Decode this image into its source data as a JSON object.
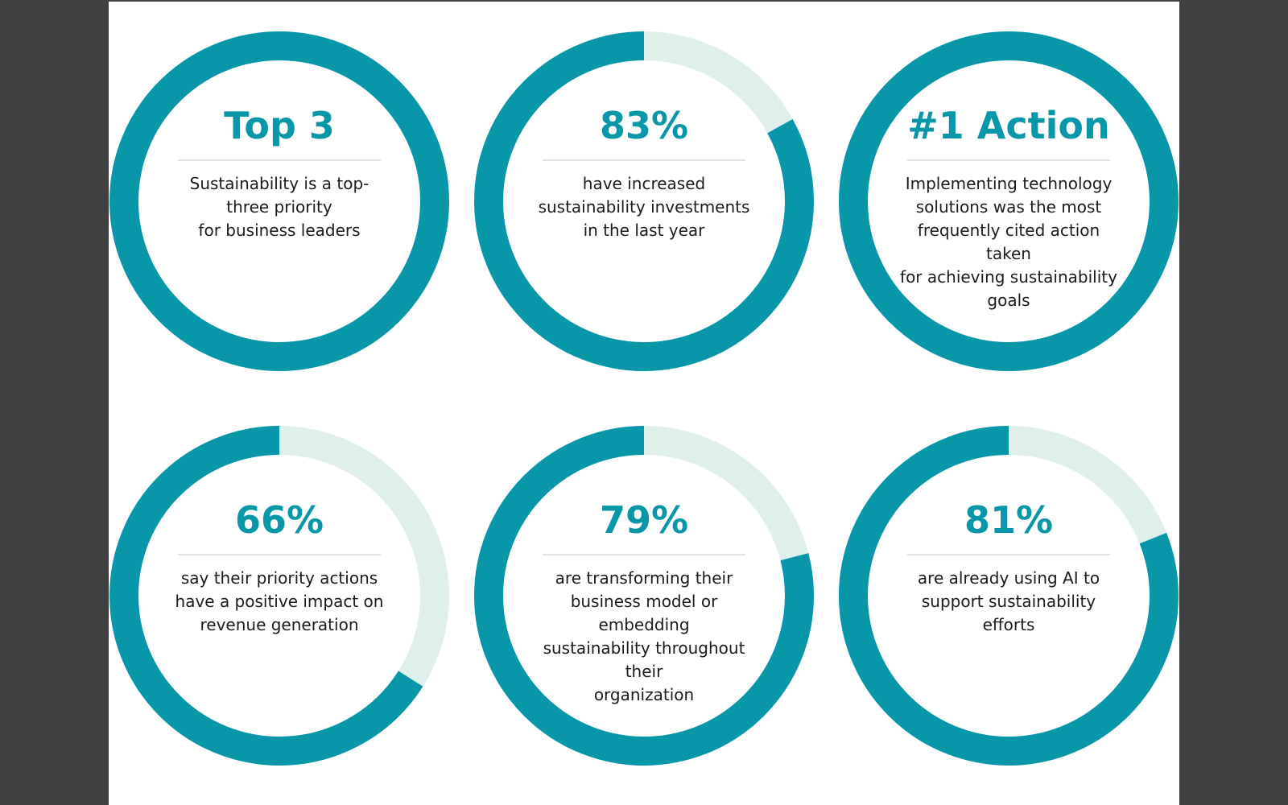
{
  "colors": {
    "ring_filled": "#0897a8",
    "ring_remaining": "#dff0ec",
    "headline": "#0897a8",
    "body_text": "#1b1b1b",
    "divider": "#e3e3e3"
  },
  "stats": [
    {
      "headline": "Top 3",
      "lines": [
        "Sustainability is a top-",
        "three priority",
        "for business leaders"
      ],
      "percent": 100
    },
    {
      "headline": "83%",
      "lines": [
        "have increased",
        "sustainability investments",
        "in the last year"
      ],
      "percent": 83
    },
    {
      "headline": "#1 Action",
      "lines": [
        "Implementing technology",
        "solutions was the most",
        "frequently cited action taken",
        "for achieving sustainability",
        "goals"
      ],
      "percent": 100
    },
    {
      "headline": "66%",
      "lines": [
        "say their priority actions",
        "have a positive impact on",
        "revenue generation"
      ],
      "percent": 66
    },
    {
      "headline": "79%",
      "lines": [
        "are transforming their",
        "business model or embedding",
        "sustainability throughout their",
        "organization"
      ],
      "percent": 79
    },
    {
      "headline": "81%",
      "lines": [
        "are already using AI to",
        "support sustainability efforts"
      ],
      "percent": 81
    }
  ]
}
